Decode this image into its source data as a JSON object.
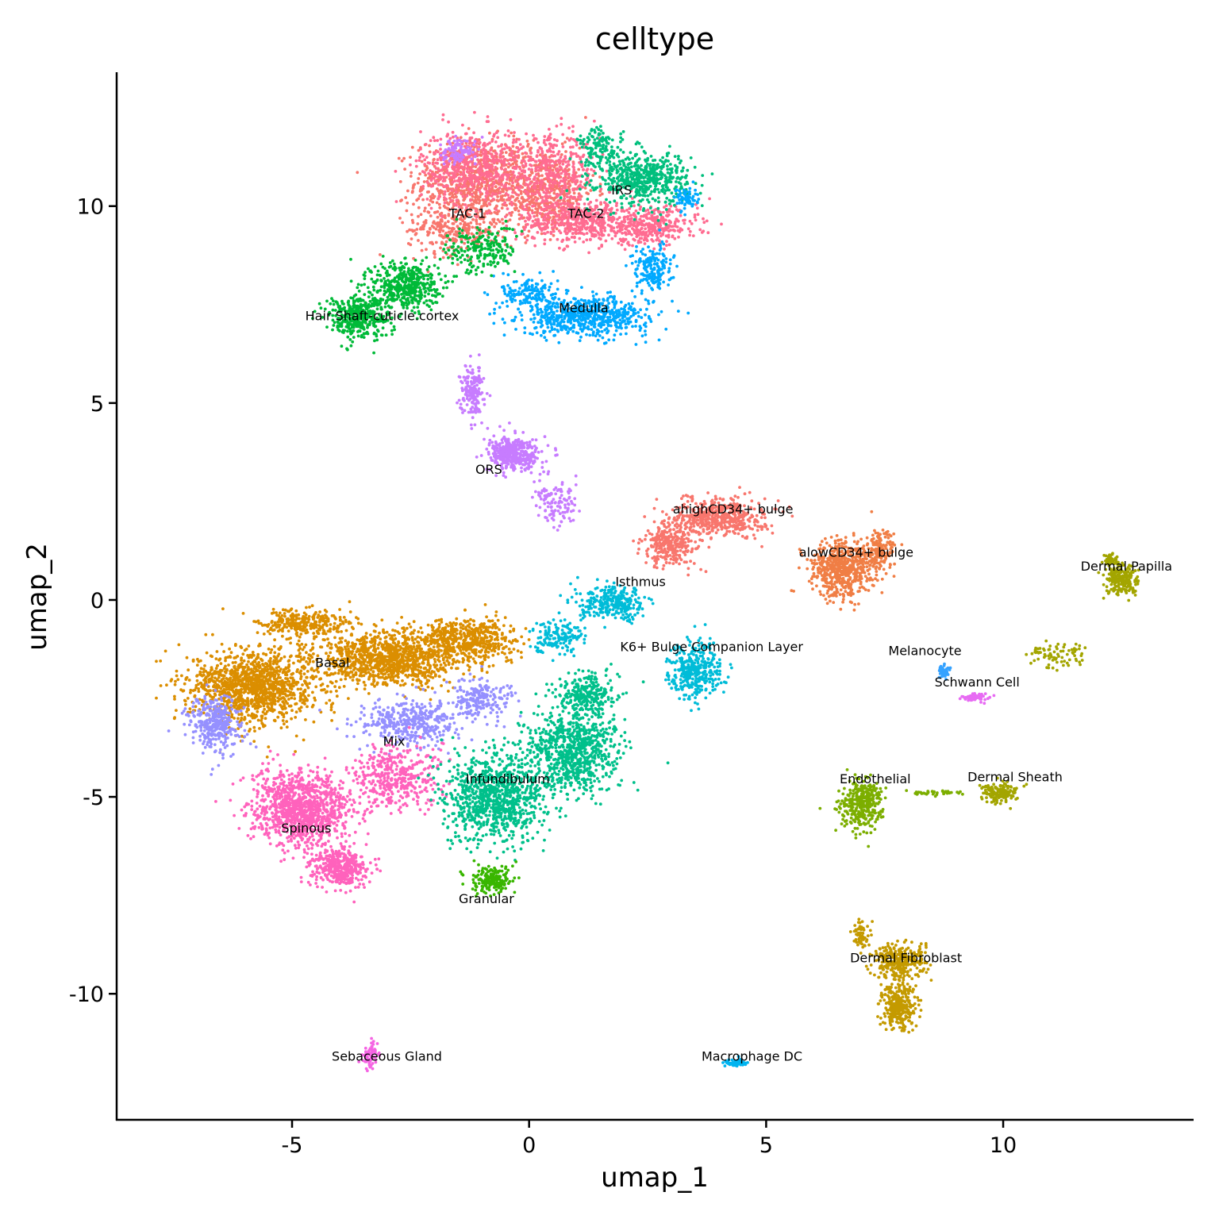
{
  "chart_data": {
    "type": "scatter",
    "title": "celltype",
    "xlabel": "umap_1",
    "ylabel": "umap_2",
    "xlim": [
      -8.7,
      14
    ],
    "ylim": [
      -13.2,
      13.4
    ],
    "xticks": [
      -5,
      0,
      5,
      10
    ],
    "yticks": [
      -10,
      -5,
      0,
      5,
      10
    ],
    "xtick_labels": [
      "-5",
      "0",
      "5",
      "10"
    ],
    "ytick_labels": [
      "-10",
      "-5",
      "0",
      "5",
      "10"
    ],
    "grid": false,
    "legend": "none",
    "clusters": [
      {
        "label": "TAC-1",
        "label_x": -1.3,
        "label_y": 9.8,
        "color": "#F8766D",
        "blobs": [
          [
            -1.2,
            10.6,
            1.0,
            0.9,
            700
          ],
          [
            0.3,
            10.4,
            0.9,
            0.9,
            500
          ],
          [
            -1.6,
            9.4,
            0.8,
            0.5,
            250
          ]
        ]
      },
      {
        "label": "TAC-2",
        "label_x": 1.2,
        "label_y": 9.8,
        "color": "#FF6C91",
        "blobs": [
          [
            -1.2,
            11.0,
            0.9,
            0.8,
            500
          ],
          [
            1.2,
            9.6,
            1.2,
            0.45,
            500
          ],
          [
            2.6,
            9.5,
            0.8,
            0.4,
            300
          ],
          [
            0.5,
            10.8,
            0.8,
            0.8,
            400
          ]
        ]
      },
      {
        "label": "IRS",
        "label_x": 1.95,
        "label_y": 10.4,
        "color": "#00BF7D",
        "blobs": [
          [
            2.4,
            10.7,
            0.8,
            0.55,
            550
          ],
          [
            1.5,
            11.5,
            0.4,
            0.4,
            120
          ]
        ]
      },
      {
        "label": "Medulla",
        "label_x": 1.15,
        "label_y": 7.4,
        "color": "#00A9FF",
        "blobs": [
          [
            1.2,
            7.2,
            1.1,
            0.4,
            650
          ],
          [
            2.6,
            8.4,
            0.35,
            0.5,
            180
          ],
          [
            3.3,
            10.2,
            0.2,
            0.25,
            60
          ],
          [
            0.0,
            7.8,
            0.5,
            0.35,
            150
          ]
        ]
      },
      {
        "label": "Hair Shaft-cuticle.cortex",
        "label_x": -3.1,
        "label_y": 7.2,
        "color": "#00BA38",
        "blobs": [
          [
            -2.6,
            8.0,
            0.6,
            0.5,
            450
          ],
          [
            -3.6,
            7.2,
            0.55,
            0.45,
            420
          ],
          [
            -1.0,
            8.9,
            0.6,
            0.5,
            200
          ]
        ]
      },
      {
        "label": "ORS",
        "label_x": -0.85,
        "label_y": 3.3,
        "color": "#C77CFF",
        "blobs": [
          [
            -0.3,
            3.7,
            0.45,
            0.35,
            420
          ],
          [
            -1.2,
            5.3,
            0.2,
            0.55,
            170
          ],
          [
            0.6,
            2.4,
            0.4,
            0.45,
            120
          ],
          [
            -1.5,
            11.4,
            0.3,
            0.3,
            100
          ]
        ]
      },
      {
        "label": "ahighCD34+ bulge",
        "label_x": 4.3,
        "label_y": 2.3,
        "color": "#F8766D",
        "blobs": [
          [
            4.0,
            2.1,
            0.8,
            0.4,
            500
          ],
          [
            3.0,
            1.4,
            0.5,
            0.45,
            280
          ]
        ]
      },
      {
        "label": "alowCD34+ bulge",
        "label_x": 6.9,
        "label_y": 1.2,
        "color": "#F07E45",
        "blobs": [
          [
            6.6,
            0.8,
            0.55,
            0.6,
            600
          ],
          [
            7.4,
            1.2,
            0.25,
            0.45,
            150
          ]
        ]
      },
      {
        "label": "Isthmus",
        "label_x": 2.35,
        "label_y": 0.45,
        "color": "#00BCD8",
        "blobs": [
          [
            1.8,
            -0.1,
            0.6,
            0.35,
            300
          ],
          [
            0.6,
            -0.9,
            0.5,
            0.35,
            150
          ]
        ]
      },
      {
        "label": "K6+ Bulge Companion Layer",
        "label_x": 3.85,
        "label_y": -1.2,
        "color": "#00BCD8",
        "blobs": [
          [
            3.5,
            -1.8,
            0.45,
            0.6,
            350
          ]
        ]
      },
      {
        "label": "Basal",
        "label_x": -4.15,
        "label_y": -1.6,
        "color": "#DB8E00",
        "blobs": [
          [
            -5.8,
            -2.2,
            1.1,
            0.75,
            1300
          ],
          [
            -3.0,
            -1.5,
            1.3,
            0.55,
            1100
          ],
          [
            -1.3,
            -1.0,
            0.9,
            0.45,
            550
          ],
          [
            -4.8,
            -0.6,
            0.8,
            0.3,
            300
          ]
        ]
      },
      {
        "label": "Mix",
        "label_x": -2.85,
        "label_y": -3.6,
        "color": "#9590FF",
        "blobs": [
          [
            -6.6,
            -3.2,
            0.45,
            0.6,
            350
          ],
          [
            -2.5,
            -3.1,
            0.9,
            0.5,
            400
          ],
          [
            -1.0,
            -2.5,
            0.6,
            0.4,
            200
          ]
        ]
      },
      {
        "label": "Spinous",
        "label_x": -4.7,
        "label_y": -5.8,
        "color": "#FF62BC",
        "blobs": [
          [
            -4.8,
            -5.3,
            0.85,
            0.75,
            1100
          ],
          [
            -4.0,
            -6.8,
            0.5,
            0.4,
            400
          ],
          [
            -2.8,
            -4.5,
            0.8,
            0.7,
            400
          ]
        ]
      },
      {
        "label": "Infundibulum",
        "label_x": -0.45,
        "label_y": -4.55,
        "color": "#00C08B",
        "blobs": [
          [
            -0.7,
            -5.0,
            0.9,
            0.9,
            1000
          ],
          [
            0.9,
            -3.8,
            0.8,
            0.9,
            800
          ],
          [
            1.2,
            -2.4,
            0.5,
            0.45,
            250
          ]
        ]
      },
      {
        "label": "Granular",
        "label_x": -0.9,
        "label_y": -7.6,
        "color": "#39B600",
        "blobs": [
          [
            -0.8,
            -7.1,
            0.35,
            0.3,
            200
          ]
        ]
      },
      {
        "label": "Dermal Papilla",
        "label_x": 12.6,
        "label_y": 0.85,
        "color": "#A3A500",
        "blobs": [
          [
            12.5,
            0.5,
            0.3,
            0.3,
            200
          ],
          [
            11.2,
            -1.4,
            0.55,
            0.3,
            80
          ],
          [
            12.3,
            1.0,
            0.15,
            0.15,
            50
          ]
        ]
      },
      {
        "label": "Melanocyte",
        "label_x": 8.35,
        "label_y": -1.3,
        "color": "#35A2FF",
        "blobs": [
          [
            8.75,
            -1.8,
            0.1,
            0.15,
            40
          ]
        ]
      },
      {
        "label": "Schwann Cell",
        "label_x": 9.45,
        "label_y": -2.1,
        "color": "#E76BF3",
        "blobs": [
          [
            9.4,
            -2.5,
            0.25,
            0.1,
            60
          ]
        ]
      },
      {
        "label": "Endothelial",
        "label_x": 7.3,
        "label_y": -4.55,
        "color": "#7CAE00",
        "blobs": [
          [
            7.0,
            -5.2,
            0.35,
            0.5,
            350
          ],
          [
            8.6,
            -4.9,
            0.5,
            0.06,
            40
          ]
        ]
      },
      {
        "label": "Dermal Sheath",
        "label_x": 10.25,
        "label_y": -4.5,
        "color": "#A3A500",
        "blobs": [
          [
            9.9,
            -4.9,
            0.3,
            0.2,
            160
          ]
        ]
      },
      {
        "label": "Dermal Fibroblast",
        "label_x": 7.95,
        "label_y": -9.1,
        "color": "#C49A00",
        "blobs": [
          [
            7.8,
            -9.2,
            0.45,
            0.4,
            300
          ],
          [
            7.8,
            -10.3,
            0.3,
            0.5,
            300
          ],
          [
            7.0,
            -8.5,
            0.15,
            0.3,
            60
          ]
        ]
      },
      {
        "label": "Sebaceous Gland",
        "label_x": -3.0,
        "label_y": -11.6,
        "color": "#F564E3",
        "blobs": [
          [
            -3.3,
            -11.6,
            0.15,
            0.3,
            70
          ]
        ]
      },
      {
        "label": "Macrophage DC",
        "label_x": 4.7,
        "label_y": -11.6,
        "color": "#00B4F0",
        "blobs": [
          [
            4.35,
            -11.75,
            0.2,
            0.07,
            70
          ]
        ]
      }
    ]
  }
}
